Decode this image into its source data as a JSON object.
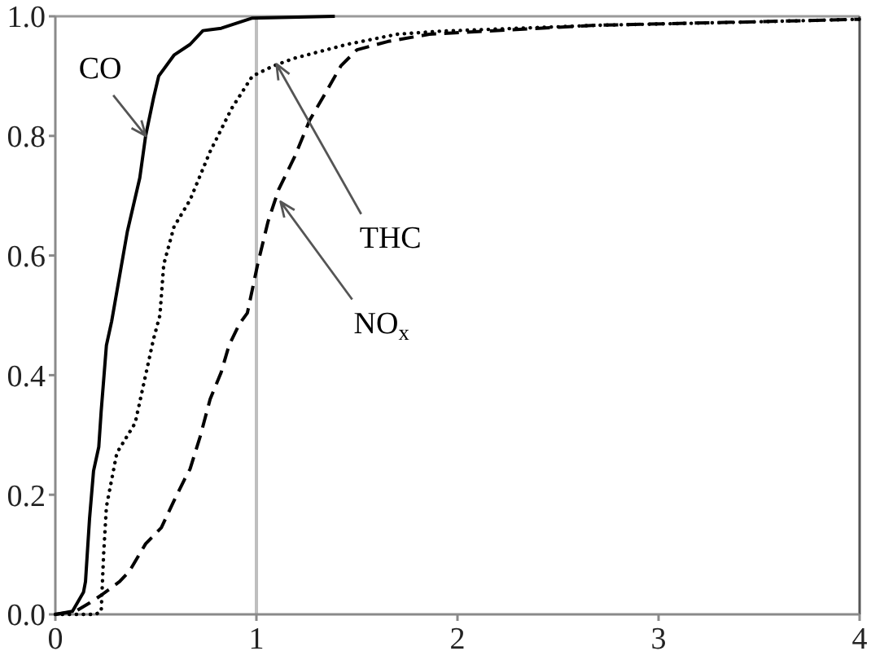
{
  "chart_data": {
    "type": "line",
    "xlim": [
      0,
      4
    ],
    "xticks": [
      0,
      1,
      2,
      3,
      4
    ],
    "ylim": [
      0,
      1
    ],
    "yticks": [
      {
        "value": 0,
        "label": "0.0"
      },
      0.2,
      0.4,
      0.6,
      0.8,
      {
        "value": 1,
        "label": "1.0"
      }
    ],
    "ref_lines": [
      {
        "axis": "x",
        "value": 1,
        "color": "#bfbfbf"
      }
    ],
    "series": [
      {
        "color": "#000000",
        "line_style": "solid",
        "x": [
          0,
          0.085,
          0.14,
          0.15,
          0.17,
          0.19,
          0.216,
          0.228,
          0.254,
          0.28,
          0.358,
          0.42,
          0.449,
          0.488,
          0.514,
          0.59,
          0.67,
          0.734,
          0.825,
          0.98,
          1.39
        ],
        "values": [
          0,
          0.005,
          0.037,
          0.055,
          0.16,
          0.24,
          0.28,
          0.34,
          0.45,
          0.49,
          0.64,
          0.73,
          0.8,
          0.863,
          0.9,
          0.935,
          0.953,
          0.976,
          0.98,
          0.997,
          1
        ]
      },
      {
        "color": "#000000",
        "line_style": "dotted",
        "x": [
          0,
          0.2,
          0.228,
          0.24,
          0.254,
          0.306,
          0.397,
          0.449,
          0.488,
          0.52,
          0.539,
          0.59,
          0.67,
          0.77,
          0.877,
          0.98,
          1.084,
          1.19,
          1.45,
          1.7,
          1.91,
          2.7,
          3.4,
          4
        ],
        "values": [
          0,
          0,
          0.005,
          0.1,
          0.18,
          0.27,
          0.32,
          0.4,
          0.46,
          0.5,
          0.585,
          0.648,
          0.693,
          0.774,
          0.846,
          0.9,
          0.917,
          0.93,
          0.953,
          0.97,
          0.975,
          0.985,
          0.99,
          0.995
        ]
      },
      {
        "color": "#000000",
        "line_style": "dashed",
        "x": [
          0,
          0.1,
          0.17,
          0.228,
          0.32,
          0.37,
          0.449,
          0.527,
          0.59,
          0.643,
          0.67,
          0.72,
          0.77,
          0.825,
          0.864,
          0.916,
          0.955,
          1.006,
          1.058,
          1.11,
          1.19,
          1.266,
          1.344,
          1.42,
          1.5,
          1.655,
          1.86,
          2.69,
          3.37,
          4
        ],
        "values": [
          0,
          0.005,
          0.019,
          0.032,
          0.055,
          0.073,
          0.118,
          0.145,
          0.19,
          0.226,
          0.243,
          0.297,
          0.36,
          0.405,
          0.45,
          0.486,
          0.504,
          0.585,
          0.657,
          0.71,
          0.765,
          0.827,
          0.872,
          0.917,
          0.944,
          0.958,
          0.97,
          0.985,
          0.99,
          0.995
        ]
      }
    ],
    "annotations": [
      {
        "text": "CO",
        "x": 0.45,
        "y": 0.8
      },
      {
        "text": "THC",
        "x": 1.1,
        "y": 0.92
      },
      {
        "text": "NO$_{x}$",
        "x": 1.12,
        "y": 0.69
      }
    ]
  }
}
